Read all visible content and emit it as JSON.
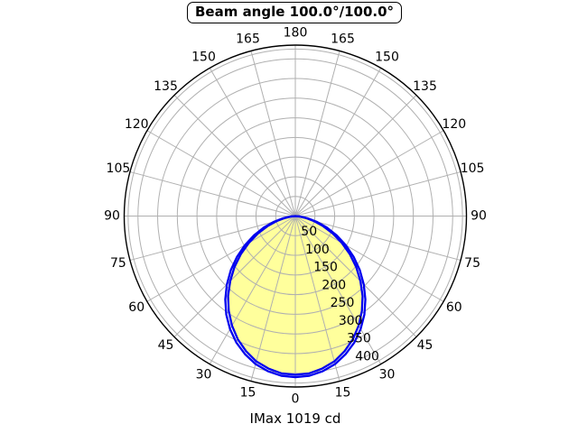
{
  "title": "Beam angle 100.0°/100.0°",
  "footer": "IMax 1019 cd",
  "colors": {
    "curve": "#0000ee",
    "fill": "#ffff9c",
    "grid": "#b0b0b0",
    "axis": "#000000",
    "background": "#ffffff",
    "text": "#000000"
  },
  "chart_data": {
    "type": "line",
    "projection": "polar",
    "title": "Beam angle 100.0°/100.0°",
    "annotation": "IMax 1019 cd",
    "beam_angle_c0": "100.0°",
    "beam_angle_c90": "100.0°",
    "imax_cd": 1019,
    "angle_axis": {
      "unit": "deg",
      "zero_at": "bottom",
      "tick_step_deg": 15,
      "labels": [
        0,
        15,
        30,
        45,
        60,
        75,
        90,
        105,
        120,
        135,
        150,
        165,
        180
      ],
      "mirrored": true
    },
    "radial_axis": {
      "ticks": [
        50,
        100,
        150,
        200,
        250,
        300,
        350,
        400
      ],
      "edge_ring": 425,
      "outer_limit": 435,
      "grid": true
    },
    "series": [
      {
        "name": "intensity-curve-inner",
        "mirrored": true,
        "fill": true,
        "angles_deg": [
          0,
          5,
          10,
          15,
          20,
          25,
          30,
          35,
          40,
          45,
          50,
          55,
          60,
          65,
          70,
          75,
          80,
          85,
          90
        ],
        "values": [
          404,
          402,
          394,
          383,
          366,
          346,
          322,
          295,
          266,
          234,
          202,
          169,
          136,
          105,
          75,
          48,
          26,
          9,
          0
        ]
      },
      {
        "name": "intensity-curve-outer",
        "mirrored": true,
        "fill": false,
        "angles_deg": [
          0,
          5,
          10,
          15,
          20,
          25,
          30,
          35,
          40,
          45,
          50,
          55,
          60,
          65,
          70,
          75,
          80,
          85,
          90
        ],
        "values": [
          410,
          408,
          401,
          390,
          374,
          355,
          332,
          306,
          277,
          246,
          214,
          181,
          148,
          116,
          85,
          56,
          31,
          11,
          0
        ]
      }
    ],
    "legend": null
  }
}
